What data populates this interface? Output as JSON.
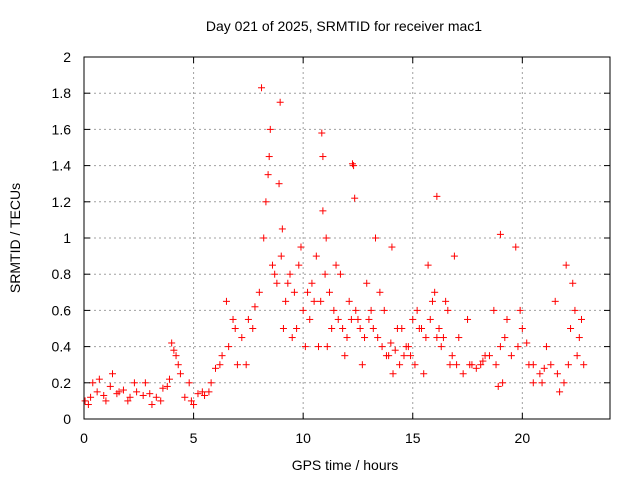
{
  "chart_data": {
    "type": "scatter",
    "title": "Day 021 of 2025, SRMTID for receiver mac1",
    "xlabel": "GPS time / hours",
    "ylabel": "SRMTID / TECUs",
    "xlim": [
      0,
      24
    ],
    "ylim": [
      0,
      2
    ],
    "xticks": [
      0,
      5,
      10,
      15,
      20
    ],
    "xtick_labels": [
      "0",
      "5",
      "10",
      "15",
      "20"
    ],
    "yticks": [
      0,
      0.2,
      0.4,
      0.6,
      0.8,
      1.0,
      1.2,
      1.4,
      1.6,
      1.8,
      2.0
    ],
    "ytick_labels": [
      "0",
      "0.2",
      "0.4",
      "0.6",
      "0.8",
      "1",
      "1.2",
      "1.4",
      "1.6",
      "1.8",
      "2"
    ],
    "grid": true,
    "marker": "+",
    "series": [
      {
        "name": "SRMTID",
        "color": "#ff0000",
        "x": [
          0.05,
          0.3,
          0.6,
          0.9,
          1.2,
          1.5,
          1.8,
          2.1,
          2.4,
          2.7,
          3.0,
          3.3,
          3.6,
          3.9,
          4.1,
          4.3,
          4.6,
          4.9,
          5.2,
          5.5,
          5.8,
          6.0,
          6.3,
          6.6,
          6.9,
          7.2,
          7.5,
          7.8,
          8.0,
          8.2,
          8.4,
          8.6,
          8.8,
          9.0,
          9.2,
          9.4,
          9.6,
          9.8,
          10.0,
          10.2,
          10.4,
          10.6,
          10.8,
          11.0,
          11.2,
          11.4,
          11.6,
          11.8,
          12.0,
          12.2,
          12.4,
          12.6,
          12.8,
          13.0,
          13.2,
          13.4,
          13.6,
          13.8,
          14.0,
          14.2,
          14.4,
          14.6,
          14.8,
          15.0,
          15.2,
          15.4,
          15.6,
          15.8,
          16.0,
          16.2,
          16.4,
          16.6,
          16.8,
          17.0,
          17.3,
          17.6,
          17.9,
          18.2,
          18.5,
          18.8,
          19.0,
          19.2,
          19.5,
          19.8,
          20.0,
          20.2,
          20.5,
          20.8,
          21.0,
          21.3,
          21.6,
          21.9,
          22.2,
          22.4,
          22.6,
          22.8,
          0.2,
          0.7,
          1.3,
          2.0,
          2.8,
          3.5,
          4.0,
          4.2,
          5.0,
          5.7,
          6.5,
          7.0,
          7.7,
          8.3,
          8.5,
          8.9,
          9.1,
          9.5,
          9.9,
          10.3,
          10.7,
          10.9,
          11.3,
          11.7,
          12.1,
          12.3,
          12.7,
          13.1,
          13.5,
          13.9,
          14.3,
          14.7,
          15.1,
          15.5,
          15.9,
          16.1,
          16.5,
          16.9,
          17.5,
          18.1,
          18.7,
          19.1,
          19.7,
          20.3,
          20.9,
          21.5,
          22.1,
          22.3,
          22.7,
          8.1,
          8.45,
          8.95,
          10.85,
          12.25,
          16.1,
          19.0,
          22.0,
          9.05,
          10.9,
          11.05,
          12.35,
          13.3,
          14.05,
          0.4,
          1.0,
          1.6,
          2.3,
          3.1,
          3.8,
          4.4,
          4.8,
          5.4,
          6.2,
          6.8,
          7.4,
          8.7,
          9.3,
          9.7,
          10.1,
          10.5,
          11.1,
          11.5,
          11.9,
          12.5,
          12.9,
          13.7,
          14.1,
          14.5,
          14.9,
          15.3,
          15.7,
          16.3,
          16.7,
          17.1,
          17.7,
          18.3,
          18.9,
          19.3,
          19.9,
          20.5,
          21.1,
          21.7,
          22.5
        ],
        "y": [
          0.1,
          0.12,
          0.15,
          0.13,
          0.18,
          0.14,
          0.16,
          0.12,
          0.15,
          0.13,
          0.14,
          0.12,
          0.17,
          0.22,
          0.38,
          0.3,
          0.12,
          0.1,
          0.14,
          0.13,
          0.2,
          0.28,
          0.35,
          0.4,
          0.5,
          0.45,
          0.55,
          0.62,
          0.7,
          1.0,
          1.35,
          0.85,
          0.75,
          0.9,
          0.65,
          0.8,
          0.7,
          0.85,
          0.6,
          0.7,
          0.75,
          0.9,
          0.65,
          0.8,
          0.7,
          0.6,
          0.55,
          0.5,
          0.45,
          0.55,
          0.6,
          0.5,
          0.45,
          0.55,
          0.5,
          0.45,
          0.4,
          0.35,
          0.42,
          0.38,
          0.3,
          0.35,
          0.4,
          0.55,
          0.6,
          0.5,
          0.45,
          0.55,
          0.7,
          0.5,
          0.45,
          0.6,
          0.35,
          0.3,
          0.25,
          0.3,
          0.28,
          0.32,
          0.35,
          0.3,
          0.4,
          0.45,
          0.35,
          0.4,
          0.5,
          0.42,
          0.3,
          0.25,
          0.28,
          0.3,
          0.25,
          0.2,
          0.5,
          0.6,
          0.45,
          0.3,
          0.08,
          0.22,
          0.25,
          0.1,
          0.2,
          0.1,
          0.42,
          0.35,
          0.08,
          0.15,
          0.65,
          0.3,
          0.5,
          1.2,
          1.6,
          1.3,
          0.5,
          0.45,
          0.95,
          0.55,
          0.4,
          1.45,
          0.5,
          0.8,
          0.65,
          1.4,
          0.3,
          0.6,
          0.7,
          0.35,
          0.5,
          0.4,
          0.3,
          0.25,
          0.65,
          0.45,
          0.65,
          0.9,
          0.55,
          0.3,
          0.6,
          0.2,
          0.95,
          0.3,
          0.2,
          0.65,
          0.3,
          0.75,
          0.55,
          1.83,
          1.45,
          1.75,
          1.58,
          1.41,
          1.23,
          1.02,
          0.85,
          1.05,
          1.15,
          1.0,
          1.22,
          1.0,
          0.95,
          0.2,
          0.1,
          0.15,
          0.2,
          0.08,
          0.18,
          0.25,
          0.2,
          0.15,
          0.3,
          0.55,
          0.3,
          0.8,
          0.75,
          0.5,
          0.4,
          0.65,
          0.4,
          0.85,
          0.35,
          0.55,
          0.75,
          0.6,
          0.25,
          0.5,
          0.35,
          0.5,
          0.85,
          0.4,
          0.3,
          0.45,
          0.3,
          0.35,
          0.18,
          0.55,
          0.6,
          0.2,
          0.4,
          0.15,
          0.35
        ]
      }
    ]
  }
}
